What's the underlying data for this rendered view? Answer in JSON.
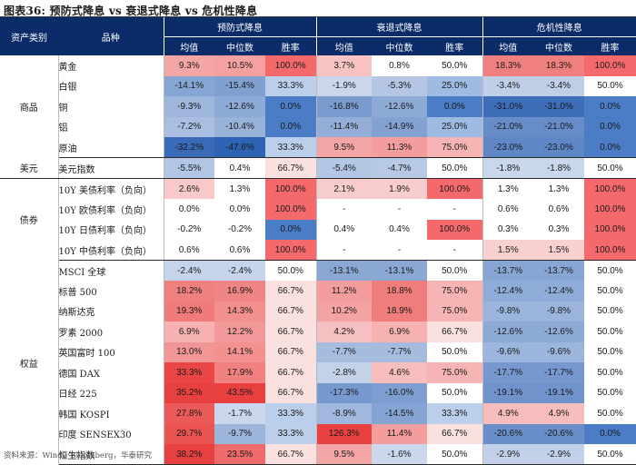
{
  "title": "图表36:  预防式降息 vs 衰退式降息 vs 危机性降息",
  "header": {
    "asset_class": "资产类别",
    "variety": "品种",
    "groups": [
      "预防式降息",
      "衰退式降息",
      "危机性降息"
    ],
    "cols": [
      "均值",
      "中位数",
      "胜率"
    ]
  },
  "colors": {
    "header_bg": "#0b2c69",
    "positive": "#e8403f",
    "negative": "#2e62b4"
  },
  "sections": [
    {
      "category": "商品",
      "rows": [
        {
          "name": "黄金",
          "cells": [
            "9.3%",
            "10.5%",
            "100.0%",
            "3.7%",
            "0.8%",
            "50.0%",
            "18.3%",
            "18.3%",
            "100.0%"
          ]
        },
        {
          "name": "白银",
          "cells": [
            "-14.1%",
            "-15.4%",
            "33.3%",
            "-1.9%",
            "-5.3%",
            "25.0%",
            "-3.4%",
            "-3.4%",
            "50.0%"
          ]
        },
        {
          "name": "铜",
          "cells": [
            "-9.3%",
            "-12.6%",
            "0.0%",
            "-16.8%",
            "-12.6%",
            "0.0%",
            "-31.0%",
            "-31.0%",
            "0.0%"
          ]
        },
        {
          "name": "铝",
          "cells": [
            "-7.2%",
            "-10.4%",
            "0.0%",
            "-11.4%",
            "-14.9%",
            "25.0%",
            "-21.0%",
            "-21.0%",
            "0.0%"
          ]
        },
        {
          "name": "原油",
          "cells": [
            "-32.2%",
            "-47.6%",
            "33.3%",
            "9.5%",
            "11.3%",
            "75.0%",
            "-23.0%",
            "-23.0%",
            "0.0%"
          ]
        }
      ]
    },
    {
      "category": "美元",
      "rows": [
        {
          "name": "美元指数",
          "cells": [
            "-5.5%",
            "0.4%",
            "66.7%",
            "-5.4%",
            "-4.7%",
            "50.0%",
            "-1.8%",
            "-1.8%",
            "50.0%"
          ]
        }
      ]
    },
    {
      "category": "债券",
      "rows": [
        {
          "name": "10Y 美债利率（负向）",
          "cells": [
            "2.6%",
            "1.3%",
            "100.0%",
            "2.1%",
            "1.9%",
            "100.0%",
            "1.3%",
            "1.3%",
            "100.0%"
          ]
        },
        {
          "name": "10Y 欧债利率（负向）",
          "cells": [
            "0.0%",
            "0.0%",
            "100.0%",
            "-",
            "-",
            "-",
            "0.6%",
            "0.6%",
            "100.0%"
          ]
        },
        {
          "name": "10Y 日债利率（负向）",
          "cells": [
            "-0.2%",
            "-0.2%",
            "0.0%",
            "0.4%",
            "0.4%",
            "100.0%",
            "0.3%",
            "0.3%",
            "100.0%"
          ]
        },
        {
          "name": "10Y 中债利率（负向）",
          "cells": [
            "0.6%",
            "0.6%",
            "100.0%",
            "-",
            "-",
            "-",
            "1.5%",
            "1.5%",
            "100.0%"
          ]
        }
      ]
    },
    {
      "category": "权益",
      "rows": [
        {
          "name": "MSCI 全球",
          "cells": [
            "-2.4%",
            "-2.4%",
            "50.0%",
            "-13.1%",
            "-13.1%",
            "50.0%",
            "-13.7%",
            "-13.7%",
            "50.0%"
          ]
        },
        {
          "name": "标普 500",
          "cells": [
            "18.2%",
            "16.9%",
            "66.7%",
            "11.2%",
            "18.8%",
            "75.0%",
            "-12.4%",
            "-12.4%",
            "50.0%"
          ]
        },
        {
          "name": "纳斯达克",
          "cells": [
            "19.3%",
            "14.3%",
            "66.7%",
            "10.2%",
            "18.9%",
            "75.0%",
            "-9.8%",
            "-9.8%",
            "50.0%"
          ]
        },
        {
          "name": "罗素 2000",
          "cells": [
            "6.9%",
            "12.2%",
            "66.7%",
            "4.2%",
            "6.9%",
            "66.7%",
            "-12.6%",
            "-12.6%",
            "50.0%"
          ]
        },
        {
          "name": "英国富时 100",
          "cells": [
            "13.0%",
            "14.1%",
            "66.7%",
            "-7.7%",
            "-7.7%",
            "50.0%",
            "-9.6%",
            "-9.6%",
            "50.0%"
          ]
        },
        {
          "name": "德国 DAX",
          "cells": [
            "33.3%",
            "17.9%",
            "66.7%",
            "-2.8%",
            "4.6%",
            "75.0%",
            "-17.7%",
            "-17.7%",
            "50.0%"
          ]
        },
        {
          "name": "日经 225",
          "cells": [
            "35.2%",
            "43.5%",
            "66.7%",
            "-17.3%",
            "-16.0%",
            "50.0%",
            "-19.1%",
            "-19.1%",
            "50.0%"
          ]
        },
        {
          "name": "韩国 KOSPI",
          "cells": [
            "27.8%",
            "-1.7%",
            "33.3%",
            "-8.9%",
            "-14.5%",
            "33.3%",
            "4.9%",
            "4.9%",
            "50.0%"
          ]
        },
        {
          "name": "印度 SENSEX30",
          "cells": [
            "29.7%",
            "-9.7%",
            "33.3%",
            "126.3%",
            "11.4%",
            "66.7%",
            "-20.6%",
            "-20.6%",
            "0.0%"
          ]
        },
        {
          "name": "恒生指数",
          "cells": [
            "38.2%",
            "23.5%",
            "66.7%",
            "9.5%",
            "-1.6%",
            "50.0%",
            "-2.9%",
            "-2.9%",
            "50.0%"
          ]
        }
      ]
    }
  ],
  "source": "资料来源：Wind，Bloomberg，华泰研究"
}
